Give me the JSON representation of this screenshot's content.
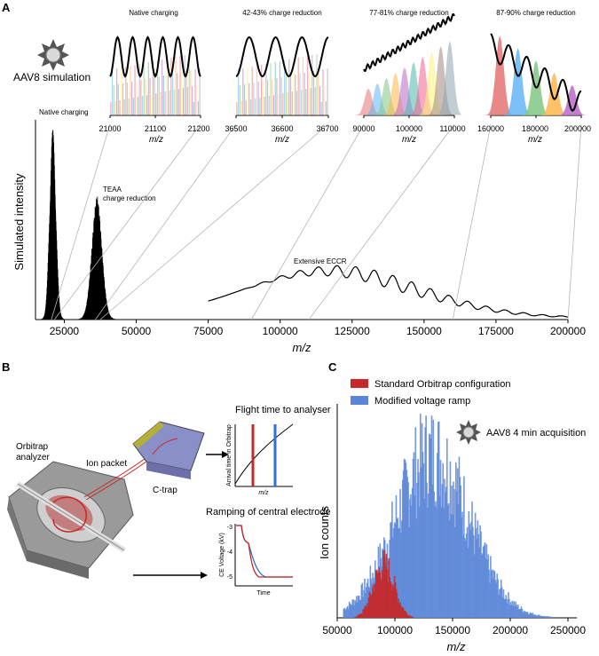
{
  "panel_labels": {
    "a": "A",
    "b": "B",
    "c": "C"
  },
  "panel_a": {
    "virus_label": "AAV8 simulation",
    "insets": [
      {
        "title": "Native charging",
        "xlabel": "m/z",
        "ticks": [
          "21000",
          "21100",
          "21200"
        ]
      },
      {
        "title": "42-43% charge reduction",
        "xlabel": "m/z",
        "ticks": [
          "36500",
          "36600",
          "36700"
        ]
      },
      {
        "title": "77-81% charge reduction",
        "xlabel": "m/z",
        "ticks": [
          "90000",
          "100000",
          "110000"
        ]
      },
      {
        "title": "87-90% charge reduction",
        "xlabel": "m/z",
        "ticks": [
          "160000",
          "180000",
          "200000"
        ]
      }
    ]
  },
  "panel_b": {
    "orbitrap_label": "Orbitrap",
    "analyzer_label": "analyzer",
    "ion_packet_label": "Ion packet",
    "ctrap_label": "C-trap",
    "flight_title": "Flight time to analyser",
    "flight_ylabel": "Arrival time in Orbitrap",
    "flight_xlabel": "m/z",
    "ramp_title": "Ramping of central electrode",
    "ramp_ylabel": "CE Voltage (kV)",
    "ramp_xlabel": "Time",
    "ramp_ticks": [
      "-3",
      "-4",
      "-5"
    ],
    "colors": {
      "red": "#c62828",
      "blue": "#2f6fd6"
    }
  },
  "chart_data": [
    {
      "type": "line",
      "title": "",
      "xlabel": "m/z",
      "ylabel": "Simulated intensity",
      "xlim": [
        15000,
        200000
      ],
      "ylim": [
        0,
        1.0
      ],
      "xticks": [
        25000,
        50000,
        75000,
        100000,
        125000,
        150000,
        175000,
        200000
      ],
      "x_tick_labels": [
        "25000",
        "50000",
        "75000",
        "100000",
        "125000",
        "150000",
        "175000",
        "200000"
      ],
      "annotations": [
        "Native charging",
        "TEAA",
        "charge reduction",
        "Extensive ECCR"
      ],
      "series": [
        {
          "name": "Native charging",
          "center": 21000,
          "peak": 0.95
        },
        {
          "name": "TEAA charge reduction",
          "center": 36500,
          "peak": 0.62
        },
        {
          "name": "Extensive ECCR",
          "range": [
            75000,
            200000
          ],
          "max_envelope": 0.26,
          "max_at": 120000
        }
      ]
    },
    {
      "type": "bar",
      "title": "",
      "xlabel": "m/z",
      "ylabel": "Ion counts",
      "virus_label": "AAV8 4 min acquisition",
      "xlim": [
        50000,
        250000
      ],
      "xticks": [
        50000,
        100000,
        150000,
        200000,
        250000
      ],
      "x_tick_labels": [
        "50000",
        "100000",
        "150000",
        "200000",
        "250000"
      ],
      "grid": false,
      "legend": "top-left",
      "series": [
        {
          "name": "Standard Orbitrap configuration",
          "color": "#c62828",
          "center": 90000,
          "width": 9000,
          "peak": 0.3
        },
        {
          "name": "Modified voltage ramp",
          "color": "#5a86d8",
          "center": 132000,
          "width": 32000,
          "peak": 0.92
        }
      ]
    }
  ]
}
